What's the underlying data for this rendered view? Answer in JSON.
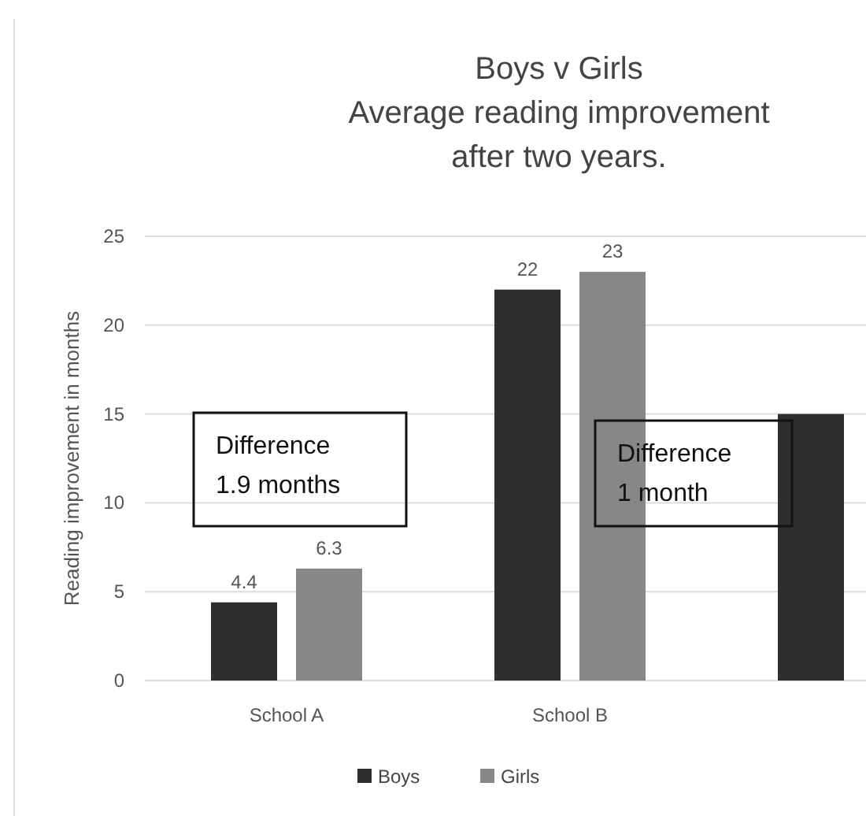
{
  "chart_data": {
    "type": "bar",
    "title": "Boys v Girls\nAverage reading improvement\nafter two years.",
    "ylabel": "Reading improvement in months",
    "categories": [
      "School A",
      "School B",
      null
    ],
    "series": [
      {
        "name": "Boys",
        "color": "#2e2e30",
        "values": [
          4.4,
          22,
          15
        ],
        "value_labels": [
          "4.4",
          "22",
          null
        ]
      },
      {
        "name": "Girls",
        "color": "#87878a",
        "values": [
          6.3,
          23,
          null
        ],
        "value_labels": [
          "6.3",
          "23",
          null
        ]
      }
    ],
    "ylim": [
      0,
      25
    ],
    "yticks": [
      0,
      5,
      10,
      15,
      20,
      25
    ],
    "grid": "y",
    "legend": "bottom",
    "annotations": [
      "Difference\n1.9 months",
      "Difference\n1 month"
    ]
  }
}
